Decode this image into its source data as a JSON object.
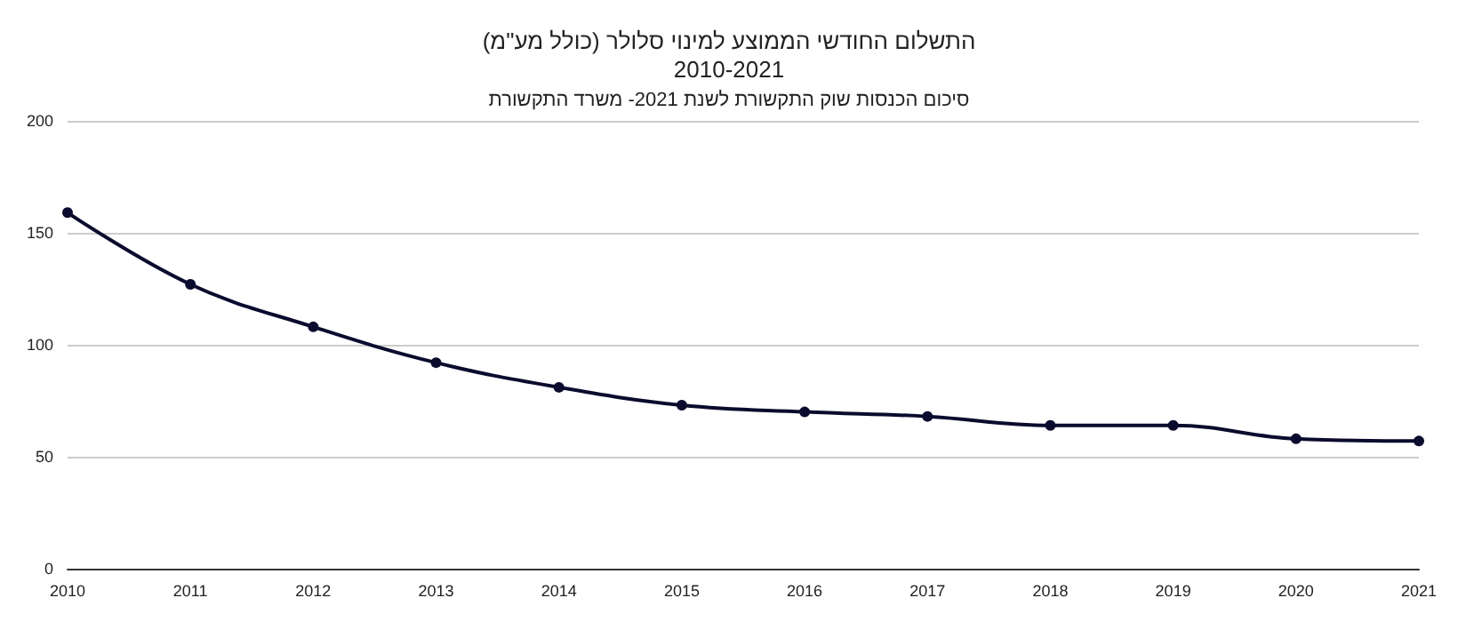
{
  "chart_data": {
    "type": "line",
    "title": "התשלום החודשי הממוצע למינוי סלולר (כולל מע\"מ)\n2010-2021",
    "subtitle": "סיכום הכנסות שוק התקשורת לשנת 2021- משרד התקשורת",
    "categories": [
      "2010",
      "2011",
      "2012",
      "2013",
      "2014",
      "2015",
      "2016",
      "2017",
      "2018",
      "2019",
      "2020",
      "2021"
    ],
    "series": [
      {
        "color": "#0b0b2e",
        "values": [
          159,
          127,
          108,
          92,
          81,
          73,
          70,
          68,
          64,
          64,
          58,
          57
        ]
      }
    ],
    "ylim": [
      0,
      200
    ],
    "yticks": [
      0,
      50,
      100,
      150,
      200
    ],
    "grid": "y",
    "marker": "circle",
    "line_style": "solid"
  }
}
